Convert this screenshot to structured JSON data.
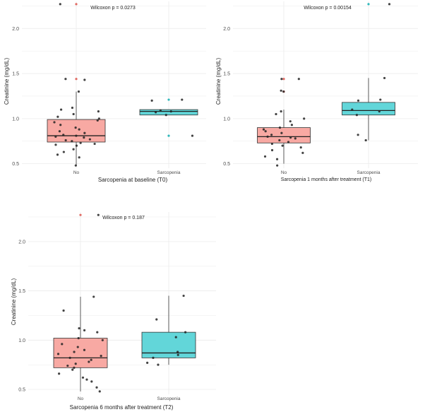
{
  "chart_data": [
    {
      "type": "box",
      "title": "Wilcoxon p = 0.0273",
      "xlabel": "Sarcopenia at baseline (T0)",
      "ylabel": "Creatinine (mg/dL)",
      "categories": [
        "No",
        "Sarcopenia"
      ],
      "ylim": [
        0.45,
        2.3
      ],
      "yticks": [
        0.5,
        1.0,
        1.5,
        2.0
      ],
      "ytick_labels": [
        "0.5",
        "1.0",
        "1.5",
        "2.0"
      ],
      "grid": true,
      "colors": [
        "#f8a9a3",
        "#62d6d9"
      ],
      "boxes": [
        {
          "q1": 0.74,
          "median": 0.81,
          "q3": 0.99,
          "whisker_low": 0.48,
          "whisker_high": 1.3,
          "outliers": [
            1.44,
            2.27
          ]
        },
        {
          "q1": 1.04,
          "median": 1.08,
          "q3": 1.1,
          "whisker_low": 1.04,
          "whisker_high": 1.1,
          "outliers": [
            0.81,
            1.21
          ]
        }
      ],
      "points": [
        [
          0.48,
          0.57,
          0.6,
          0.63,
          0.66,
          0.7,
          0.71,
          0.72,
          0.73,
          0.75,
          0.76,
          0.77,
          0.79,
          0.8,
          0.81,
          0.82,
          0.84,
          0.86,
          0.88,
          0.9,
          0.93,
          0.96,
          0.98,
          1.0,
          1.02,
          1.05,
          1.08,
          1.1,
          1.12,
          1.3,
          1.43,
          1.44,
          2.27
        ],
        [
          0.81,
          1.04,
          1.07,
          1.08,
          1.09,
          1.2,
          1.21
        ]
      ]
    },
    {
      "type": "box",
      "title": "Wilcoxon p = 0.00154",
      "xlabel": "Sarcopenia 1 months after treatment (T1)",
      "ylabel": "Creatinine (mg/dL)",
      "categories": [
        "No",
        "Sarcopenia"
      ],
      "ylim": [
        0.45,
        2.3
      ],
      "yticks": [
        0.5,
        1.0,
        1.5,
        2.0
      ],
      "ytick_labels": [
        "0.5",
        "1.0",
        "1.5",
        "2.0"
      ],
      "grid": true,
      "colors": [
        "#f8a9a3",
        "#62d6d9"
      ],
      "boxes": [
        {
          "q1": 0.73,
          "median": 0.8,
          "q3": 0.9,
          "whisker_low": 0.5,
          "whisker_high": 1.1,
          "outliers": [
            1.3,
            1.44
          ]
        },
        {
          "q1": 1.04,
          "median": 1.09,
          "q3": 1.18,
          "whisker_low": 0.76,
          "whisker_high": 1.45,
          "outliers": [
            2.27
          ]
        }
      ],
      "points": [
        [
          0.48,
          0.55,
          0.58,
          0.62,
          0.65,
          0.68,
          0.7,
          0.72,
          0.74,
          0.76,
          0.78,
          0.79,
          0.8,
          0.82,
          0.84,
          0.86,
          0.88,
          0.9,
          0.93,
          0.97,
          1.0,
          1.05,
          1.08,
          1.3,
          1.31,
          1.44,
          1.44
        ],
        [
          0.76,
          0.82,
          1.04,
          1.08,
          1.1,
          1.2,
          1.21,
          1.45,
          2.27
        ]
      ]
    },
    {
      "type": "box",
      "title": "Wilcoxon p = 0.187",
      "xlabel": "Sarcopenia 6 months after treatment (T2)",
      "ylabel": "Creatinine (mg/dL)",
      "categories": [
        "No",
        "Sarcopenia"
      ],
      "ylim": [
        0.45,
        2.3
      ],
      "yticks": [
        0.5,
        1.0,
        1.5,
        2.0
      ],
      "ytick_labels": [
        "0.5",
        "1.0",
        "1.5",
        "2.0"
      ],
      "grid": true,
      "colors": [
        "#f8a9a3",
        "#62d6d9"
      ],
      "boxes": [
        {
          "q1": 0.72,
          "median": 0.82,
          "q3": 1.02,
          "whisker_low": 0.48,
          "whisker_high": 1.44,
          "outliers": [
            2.27
          ]
        },
        {
          "q1": 0.82,
          "median": 0.87,
          "q3": 1.08,
          "whisker_low": 0.75,
          "whisker_high": 1.45,
          "outliers": []
        }
      ],
      "points": [
        [
          0.48,
          0.52,
          0.58,
          0.6,
          0.62,
          0.66,
          0.7,
          0.72,
          0.74,
          0.76,
          0.78,
          0.8,
          0.82,
          0.84,
          0.86,
          0.88,
          0.9,
          0.93,
          0.96,
          1.0,
          1.02,
          1.08,
          1.1,
          1.12,
          1.3,
          1.44,
          2.27
        ],
        [
          0.75,
          0.77,
          0.82,
          0.85,
          0.88,
          1.03,
          1.08,
          1.21,
          1.45
        ]
      ]
    }
  ]
}
